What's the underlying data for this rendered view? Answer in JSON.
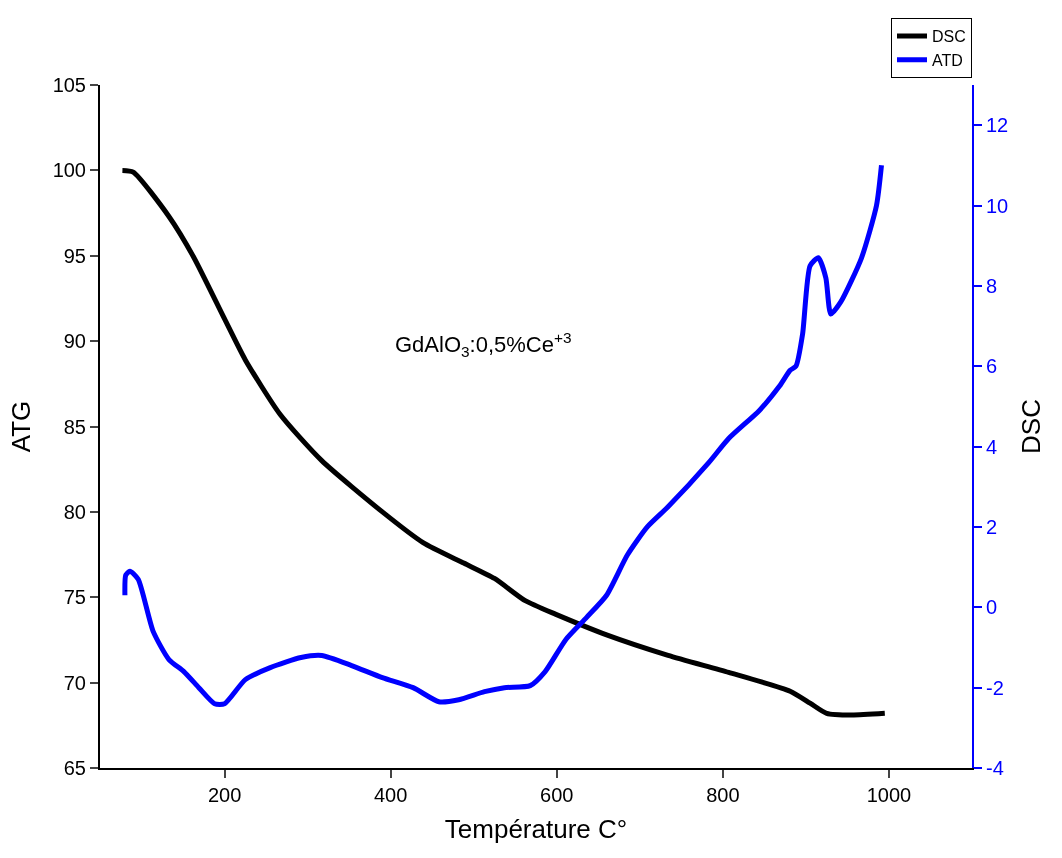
{
  "chart_data": {
    "type": "line",
    "xlabel": "Température C°",
    "ylabel": "ATG",
    "y2label": "DSC",
    "xlim": [
      50,
      1100
    ],
    "xticks": [
      200,
      400,
      600,
      800,
      1000
    ],
    "ylim": [
      65,
      105
    ],
    "yticks": [
      65,
      70,
      75,
      80,
      85,
      90,
      95,
      100,
      105
    ],
    "y2lim": [
      -4,
      13
    ],
    "y2ticks": [
      -4,
      -2,
      0,
      2,
      4,
      6,
      8,
      10,
      12
    ],
    "legend": "top right",
    "marker": "none",
    "line_style": "solid",
    "annotations": [
      "GdAlO$_{3}$:0,5%Ce$^{+3}$"
    ],
    "series": [
      {
        "name": "DSC",
        "color": "#000000",
        "x": [
          77,
          90,
          133,
          163,
          200,
          225,
          267,
          317,
          390,
          439,
          488,
          525,
          562,
          599,
          660,
          734,
          807,
          881,
          905,
          925,
          955,
          995
        ],
        "values": [
          100.0,
          99.9,
          97.3,
          94.9,
          91.3,
          88.9,
          85.7,
          83.0,
          80.0,
          78.2,
          77.0,
          76.1,
          74.8,
          74.0,
          72.8,
          71.6,
          70.6,
          69.5,
          68.8,
          68.2,
          68.1,
          68.2
        ]
      },
      {
        "name": "ATD",
        "color": "#0000ff",
        "axis": "y2",
        "x": [
          80,
          81,
          86,
          96,
          114,
          133,
          151,
          169,
          188,
          200,
          225,
          255,
          292,
          317,
          353,
          390,
          427,
          458,
          482,
          513,
          537,
          568,
          586,
          611,
          636,
          660,
          685,
          709,
          734,
          783,
          807,
          844,
          868,
          881,
          888,
          896,
          905,
          915,
          924,
          930,
          942,
          967,
          985,
          991
        ],
        "values": [
          0.3,
          0.8,
          0.9,
          0.7,
          -0.6,
          -1.3,
          -1.6,
          -2.0,
          -2.4,
          -2.4,
          -1.8,
          -1.5,
          -1.25,
          -1.2,
          -1.45,
          -1.75,
          -2.0,
          -2.35,
          -2.3,
          -2.1,
          -2.0,
          -1.95,
          -1.6,
          -0.8,
          -0.25,
          0.3,
          1.3,
          2.0,
          2.5,
          3.6,
          4.2,
          4.9,
          5.5,
          5.9,
          6.0,
          6.8,
          8.5,
          8.7,
          8.2,
          7.3,
          7.6,
          8.7,
          10.0,
          11.0
        ]
      }
    ]
  }
}
